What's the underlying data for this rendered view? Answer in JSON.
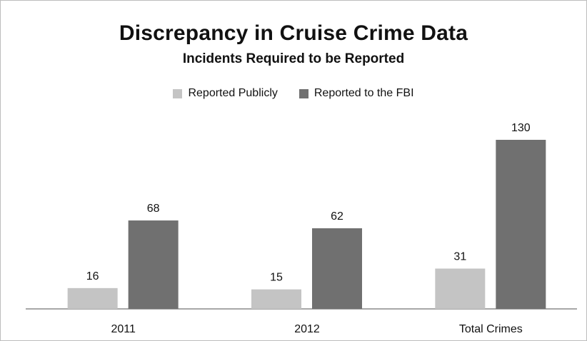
{
  "chart_data": {
    "type": "bar",
    "title": "Discrepancy in Cruise Crime Data",
    "subtitle": "Incidents Required to be Reported",
    "xlabel": "",
    "ylabel": "",
    "categories": [
      "2011",
      "2012",
      "Total Crimes"
    ],
    "series": [
      {
        "name": "Reported Publicly",
        "values": [
          16,
          15,
          31
        ],
        "color": "#c4c4c4"
      },
      {
        "name": "Reported to the FBI",
        "values": [
          68,
          62,
          130
        ],
        "color": "#707070"
      }
    ],
    "ylim": [
      0,
      130
    ],
    "grid": false,
    "legend_position": "top"
  }
}
